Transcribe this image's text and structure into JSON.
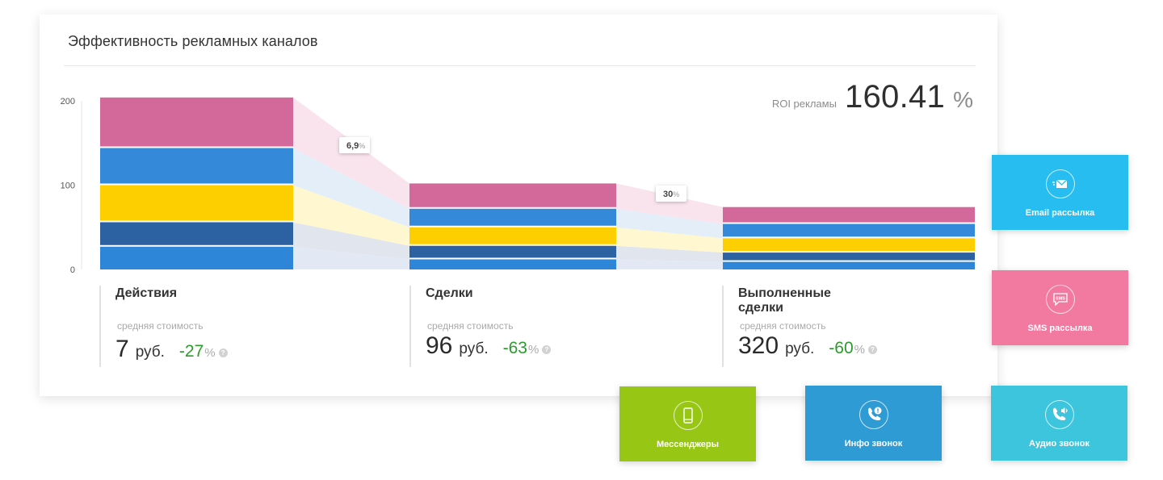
{
  "title": "Эффективность рекламных каналов",
  "roi": {
    "label": "ROI рекламы",
    "value": "160.41",
    "unit": "%"
  },
  "chart_data": {
    "type": "bar",
    "categories": [
      "Действия",
      "Сделки",
      "Выполненные сделки"
    ],
    "ylim": [
      0,
      200
    ],
    "yticks": [
      "0",
      "100",
      "200"
    ],
    "stack_colors": [
      "#2d86d8",
      "#2d62a2",
      "#fecf00",
      "#3489d8",
      "#d3699a"
    ],
    "flow_colors": [
      "#e2e9f5",
      "#e1e6ee",
      "#fff7d0",
      "#e3eef9",
      "#f9e4ee"
    ],
    "series_values": [
      [
        27,
        29,
        44,
        44,
        60
      ],
      [
        12,
        16,
        22,
        22,
        30
      ],
      [
        9,
        11,
        17,
        17,
        20
      ]
    ],
    "conversions": [
      {
        "value": "6,9",
        "unit": "%"
      },
      {
        "value": "30",
        "unit": "%"
      }
    ]
  },
  "stages": [
    {
      "name": "Действия",
      "sub": "средняя стоимость",
      "cost": "7",
      "unit": "руб.",
      "change": "-27",
      "pct": "%",
      "help": "?"
    },
    {
      "name": "Сделки",
      "sub": "средняя стоимость",
      "cost": "96",
      "unit": "руб.",
      "change": "-63",
      "pct": "%",
      "help": "?"
    },
    {
      "name": "Выполненные сделки",
      "sub": "средняя стоимость",
      "cost": "320",
      "unit": "руб.",
      "change": "-60",
      "pct": "%",
      "help": "?"
    }
  ],
  "tiles": {
    "email": {
      "label": "Email рассылка",
      "color": "#27bdf0",
      "icon": "email-icon"
    },
    "sms": {
      "label": "SMS рассылка",
      "color": "#f27aa0",
      "icon": "sms-icon",
      "icon_text": "SMS"
    },
    "messengers": {
      "label": "Мессенджеры",
      "color": "#97c614",
      "icon": "phone-icon"
    },
    "info_call": {
      "label": "Инфо звонок",
      "color": "#2f9bd4",
      "icon": "info-call-icon"
    },
    "audio_call": {
      "label": "Аудио звонок",
      "color": "#3cc5dc",
      "icon": "audio-call-icon"
    }
  }
}
